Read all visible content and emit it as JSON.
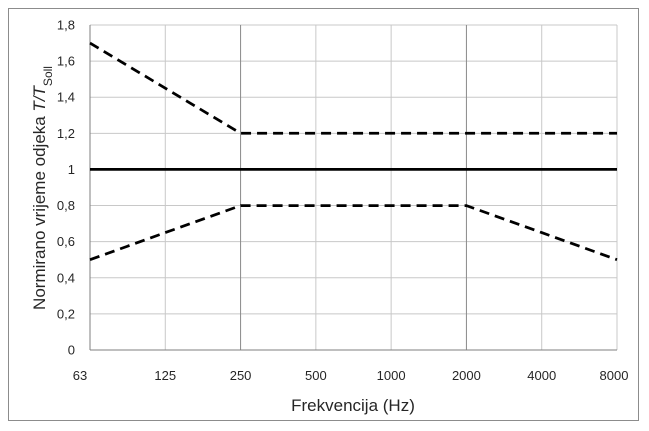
{
  "chart_data": {
    "type": "line",
    "title": "",
    "xlabel": "Frekvencija (Hz)",
    "ylabel": {
      "prefix": "Normirano vrijeme odjeka ",
      "var": "T/T",
      "sub": "Soll"
    },
    "categories": [
      "63",
      "125",
      "250",
      "500",
      "1000",
      "2000",
      "4000",
      "8000"
    ],
    "yticks": [
      "0",
      "0,2",
      "0,4",
      "0,6",
      "0,8",
      "1",
      "1,2",
      "1,4",
      "1,6",
      "1,8"
    ],
    "ylim": [
      0,
      1.8
    ],
    "grid": true,
    "legend": "none",
    "series": [
      {
        "style": "dashed",
        "color": "#000000",
        "values": [
          1.7,
          1.45,
          1.2,
          1.2,
          1.2,
          1.2,
          1.2,
          1.2
        ]
      },
      {
        "style": "solid",
        "color": "#000000",
        "values": [
          1,
          1,
          1,
          1,
          1,
          1,
          1,
          1
        ]
      },
      {
        "style": "dashed",
        "color": "#000000",
        "values": [
          0.5,
          0.65,
          0.8,
          0.8,
          0.8,
          0.8,
          0.65,
          0.5
        ]
      }
    ]
  }
}
